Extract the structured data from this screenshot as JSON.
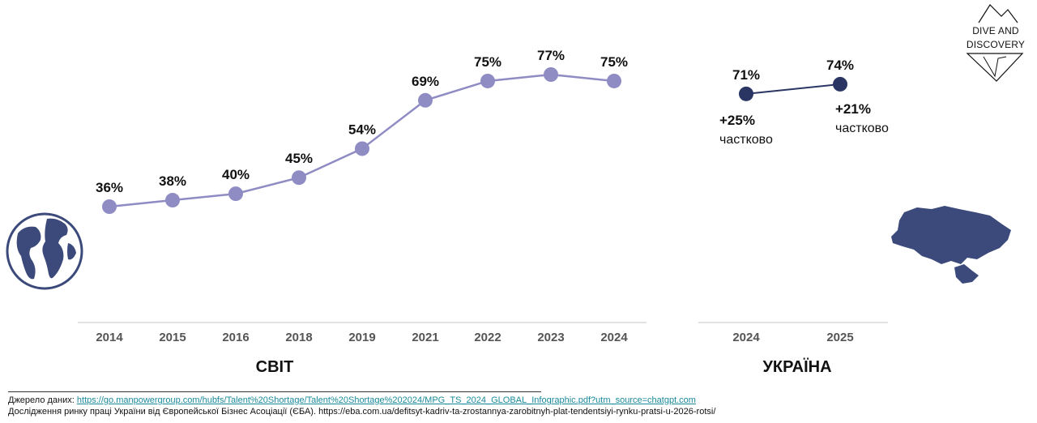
{
  "colors": {
    "world_series": "#8f8cc4",
    "ukraine_series": "#2a3563",
    "axis": "#d9d9d9",
    "icon_fill": "#3b4a7a"
  },
  "brand": {
    "line1": "DIVE AND",
    "line2": "DISCOVERY",
    "icon": "mountain-logo-icon"
  },
  "icons": {
    "globe": "globe-icon",
    "ukraine_map": "ukraine-map-icon"
  },
  "chart_data": [
    {
      "type": "line",
      "title": "СВІТ",
      "categories": [
        "2014",
        "2015",
        "2016",
        "2018",
        "2019",
        "2021",
        "2022",
        "2023",
        "2024"
      ],
      "series": [
        {
          "values": [
            36,
            38,
            40,
            45,
            54,
            69,
            75,
            77,
            75
          ]
        }
      ],
      "data_labels": [
        "36%",
        "38%",
        "40%",
        "45%",
        "54%",
        "69%",
        "75%",
        "77%",
        "75%"
      ],
      "unit": "%",
      "grid": false
    },
    {
      "type": "line",
      "title": "УКРАЇНА",
      "categories": [
        "2024",
        "2025"
      ],
      "series": [
        {
          "values": [
            71,
            74
          ]
        }
      ],
      "data_labels": [
        "71%",
        "74%"
      ],
      "annotations": [
        {
          "value": "+25%",
          "text": "частково"
        },
        {
          "value": "+21%",
          "text": "частково"
        }
      ],
      "unit": "%",
      "grid": false
    }
  ],
  "sources": {
    "line1_prefix": "Джерело даних: ",
    "line1_link": "https://go.manpowergroup.com/hubfs/Talent%20Shortage/Talent%20Shortage%202024/MPG_TS_2024_GLOBAL_Infographic.pdf?utm_source=chatgpt.com",
    "line2": "Дослідження ринку праці України від Європейської Бізнес Асоціації (ЄБА). https://eba.com.ua/defitsyt-kadriv-ta-zrostannya-zarobitnyh-plat-tendentsiyi-rynku-pratsi-u-2026-rotsi/"
  }
}
